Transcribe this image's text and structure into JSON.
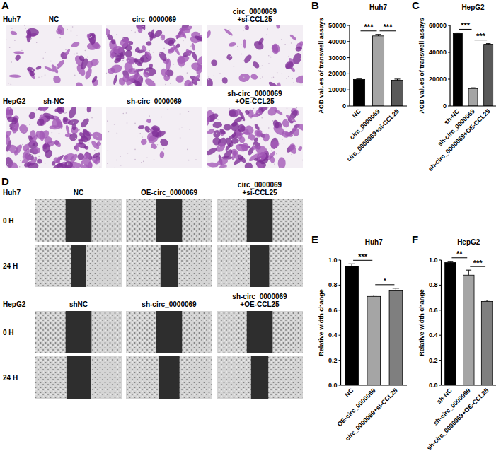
{
  "chart_data": [
    {
      "type": "bar",
      "panel_label": "B",
      "title": "Huh7",
      "y_label": "AOD values of transwell assays",
      "categories": [
        "NC",
        "circ_0000069",
        "circ_0000069+si-CCL25"
      ],
      "values": [
        16500,
        43500,
        16000
      ],
      "errors": [
        500,
        900,
        700
      ],
      "colors": [
        "#000000",
        "#a5a5a5",
        "#595959"
      ],
      "ylim": [
        0,
        50000
      ],
      "yticks": [
        0,
        10000,
        20000,
        30000,
        40000,
        50000
      ],
      "annotations": [
        {
          "from": 0,
          "to": 1,
          "label": "***"
        },
        {
          "from": 1,
          "to": 2,
          "label": "***"
        }
      ]
    },
    {
      "type": "bar",
      "panel_label": "C",
      "title": "HepG2",
      "y_label": "AOD values of transwell assays",
      "categories": [
        "sh-NC",
        "sh-circ_0000069",
        "sh-circ_0000069+OE-CCL25"
      ],
      "values": [
        54000,
        13000,
        46000
      ],
      "errors": [
        500,
        600,
        500
      ],
      "colors": [
        "#000000",
        "#a5a5a5",
        "#595959"
      ],
      "ylim": [
        0,
        60000
      ],
      "yticks": [
        0,
        20000,
        40000,
        60000
      ],
      "annotations": [
        {
          "from": 0,
          "to": 1,
          "label": "***"
        },
        {
          "from": 1,
          "to": 2,
          "label": "***"
        }
      ]
    },
    {
      "type": "bar",
      "panel_label": "E",
      "title": "Huh7",
      "y_label": "Relative width change",
      "categories": [
        "NC",
        "OE-circ_0000069",
        "circ_0000069+si-CCL25"
      ],
      "values": [
        0.95,
        0.71,
        0.76
      ],
      "errors": [
        0.02,
        0.01,
        0.015
      ],
      "colors": [
        "#000000",
        "#a5a5a5",
        "#7f7f7f"
      ],
      "ylim": [
        0,
        1
      ],
      "yticks": [
        {
          "value": 0,
          "label": "0.0"
        },
        0.2,
        0.4,
        0.6,
        0.8,
        {
          "value": 1,
          "label": "1.0"
        }
      ],
      "annotations": [
        {
          "from": 0,
          "to": 1,
          "label": "***"
        },
        {
          "from": 1,
          "to": 2,
          "label": "*"
        }
      ]
    },
    {
      "type": "bar",
      "panel_label": "F",
      "title": "HepG2",
      "y_label": "Relative width change",
      "categories": [
        "sh-NC",
        "sh-circ_0000069",
        "sh-circ_0000069+OE-CCL25"
      ],
      "values": [
        0.98,
        0.88,
        0.67
      ],
      "errors": [
        0.01,
        0.04,
        0.01
      ],
      "colors": [
        "#000000",
        "#a5a5a5",
        "#7f7f7f"
      ],
      "ylim": [
        0,
        1
      ],
      "yticks": [
        {
          "value": 0,
          "label": "0.0"
        },
        0.2,
        0.4,
        0.6,
        0.8,
        {
          "value": 1,
          "label": "1.0"
        }
      ],
      "annotations": [
        {
          "from": 0,
          "to": 1,
          "label": "**"
        },
        {
          "from": 1,
          "to": 2,
          "label": "***"
        }
      ]
    }
  ],
  "images": {
    "A": {
      "label": "A",
      "rows": [
        {
          "cell_line": "Huh7",
          "columns": [
            "NC",
            "circ_0000069",
            "circ_0000069+si-CCL25"
          ]
        },
        {
          "cell_line": "HepG2",
          "columns": [
            "sh-NC",
            "sh-circ_0000069",
            "sh-circ_0000069+OE-CCL25"
          ]
        }
      ]
    },
    "D": {
      "label": "D",
      "time_points": [
        "0 H",
        "24 H"
      ],
      "rows": [
        {
          "cell_line": "Huh7",
          "columns": [
            "NC",
            "OE-circ_0000069",
            "circ_0000069+si-CCL25"
          ]
        },
        {
          "cell_line": "HepG2",
          "columns": [
            "shNC",
            "sh-circ_0000069",
            "sh-circ_0000069+OE-CCL25"
          ]
        }
      ]
    }
  }
}
